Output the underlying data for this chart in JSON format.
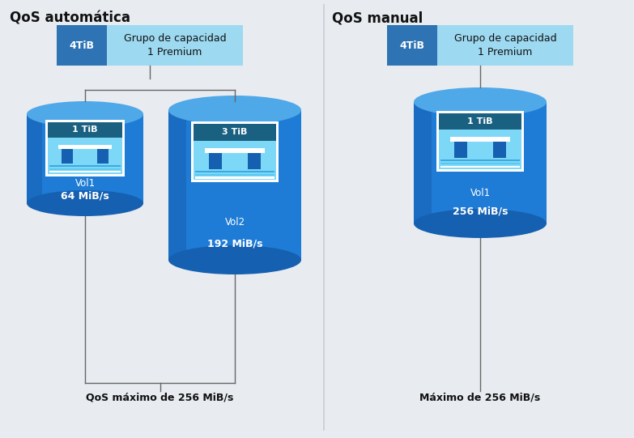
{
  "bg_color": "#e8ecf0",
  "left_title": "QoS automática",
  "right_title": "QoS manual",
  "left_subtitle": "QoS máximo de 256 MiB/s",
  "right_subtitle": "Máximo de 256 MiB/s",
  "cap_dark": "#2e74b5",
  "cap_light": "#9dd9f0",
  "cap_label": "4TiB",
  "cap_text": "Grupo de capacidad\n1 Premium",
  "cyl_main": "#1e7cd6",
  "cyl_top": "#4fa8e8",
  "cyl_dark": "#1560b0",
  "cyl_side_grad": "#1a6cc0",
  "icon_header": "#1a6080",
  "icon_bg": "#7dd8f8",
  "icon_white": "#ffffff",
  "icon_dark_blue": "#1560b0",
  "icon_stripe1": "#5bc8f0",
  "icon_stripe2": "#3aaae0",
  "line_color": "#666666",
  "text_dark": "#111111",
  "vol1_left_label": "1 TiB",
  "vol1_left_name": "Vol1",
  "vol1_left_speed": "64 MiB/s",
  "vol2_label": "3 TiB",
  "vol2_name": "Vol2",
  "vol2_speed": "192 MiB/s",
  "vol1_right_label": "1 TiB",
  "vol1_right_name": "Vol1",
  "vol1_right_speed": "256 MiB/s",
  "divider_color": "#c8cdd2"
}
